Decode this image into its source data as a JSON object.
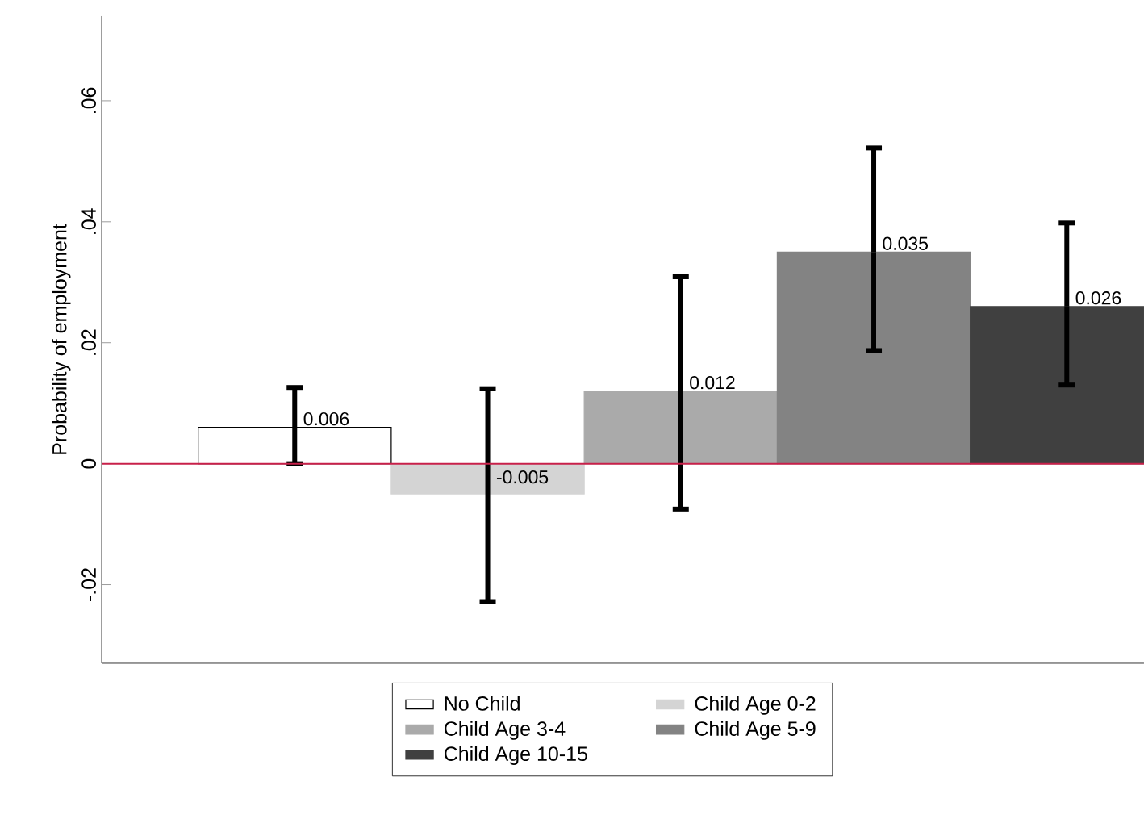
{
  "chart_data": {
    "type": "bar",
    "ylabel": "Probability of employment",
    "categories": [
      null,
      null,
      null,
      null,
      null
    ],
    "series": [
      {
        "name": "No Child",
        "color": "#ffffff",
        "values": [
          0.006,
          null,
          null,
          null,
          null
        ],
        "errors": [
          [
            0.0,
            0.0126
          ],
          null,
          null,
          null,
          null
        ]
      },
      {
        "name": "Child Age 0-2",
        "color": "#d4d4d4",
        "values": [
          null,
          -0.005,
          null,
          null,
          null
        ],
        "errors": [
          null,
          [
            -0.0228,
            0.0124
          ],
          null,
          null,
          null
        ]
      },
      {
        "name": "Child Age 3-4",
        "color": "#aaaaaa",
        "values": [
          null,
          null,
          0.012,
          null,
          null
        ],
        "errors": [
          null,
          null,
          [
            -0.0075,
            0.0309
          ],
          null,
          null
        ]
      },
      {
        "name": "Child Age 5-9",
        "color": "#838383",
        "values": [
          null,
          null,
          null,
          0.035,
          null
        ],
        "errors": [
          null,
          null,
          null,
          [
            0.0187,
            0.0522
          ],
          null
        ]
      },
      {
        "name": "Child Age 10-15",
        "color": "#404040",
        "values": [
          null,
          null,
          null,
          null,
          0.026
        ],
        "errors": [
          null,
          null,
          null,
          null,
          [
            0.013,
            0.0398
          ]
        ]
      }
    ],
    "ylim": [
      -0.033,
      0.074
    ],
    "yticks": [
      {
        "value": -0.02,
        "label": "-.02"
      },
      0,
      {
        "value": 0.02,
        "label": ".02"
      },
      {
        "value": 0.04,
        "label": ".04"
      },
      {
        "value": 0.06,
        "label": ".06"
      }
    ],
    "ref_lines": [
      {
        "axis": "y",
        "value": 0,
        "color": "#c8204a"
      }
    ],
    "data_labels": true,
    "legend": "bottom",
    "grid": false
  }
}
